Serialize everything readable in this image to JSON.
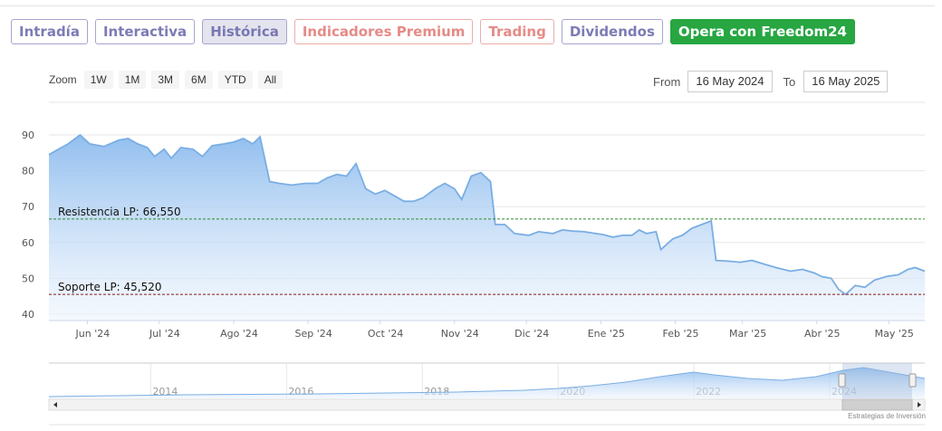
{
  "tabs": {
    "intradia": "Intradía",
    "interactiva": "Interactiva",
    "historica": "Histórica",
    "indicadores": "Indicadores Premium",
    "trading": "Trading",
    "dividendos": "Dividendos",
    "opera": "Opera con Freedom24"
  },
  "zoom": {
    "label": "Zoom",
    "buttons": [
      "1W",
      "1M",
      "3M",
      "6M",
      "YTD",
      "All"
    ]
  },
  "range": {
    "from_label": "From",
    "from_value": "16 May 2024",
    "to_label": "To",
    "to_value": "16 May 2025"
  },
  "credit": "Estrategias de Inversión",
  "colors": {
    "line": "#7aaee3",
    "fill_top": "#8cbbee",
    "resistance": "#2e8b2e",
    "support": "#8b1a1a"
  },
  "chart_data": {
    "type": "area",
    "title": "",
    "ylim": [
      40,
      90
    ],
    "y_ticks": [
      40,
      50,
      60,
      70,
      80,
      90
    ],
    "x_tick_labels": [
      "Jun '24",
      "Jul '24",
      "Ago '24",
      "Sep '24",
      "Oct '24",
      "Nov '24",
      "Dic '24",
      "Ene '25",
      "Feb '25",
      "Mar '25",
      "Abr '25",
      "May '25"
    ],
    "x_start": "2024-05-16",
    "x_end": "2025-05-16",
    "grid": true,
    "series": [
      {
        "values": [
          [
            "2024-05-16",
            84.5
          ],
          [
            "2024-05-20",
            86
          ],
          [
            "2024-05-24",
            87.5
          ],
          [
            "2024-05-29",
            90
          ],
          [
            "2024-06-02",
            87.5
          ],
          [
            "2024-06-08",
            86.8
          ],
          [
            "2024-06-14",
            88.5
          ],
          [
            "2024-06-18",
            89
          ],
          [
            "2024-06-22",
            87.5
          ],
          [
            "2024-06-26",
            86.5
          ],
          [
            "2024-06-29",
            84
          ],
          [
            "2024-07-03",
            86
          ],
          [
            "2024-07-06",
            83.5
          ],
          [
            "2024-07-10",
            86.5
          ],
          [
            "2024-07-15",
            86
          ],
          [
            "2024-07-19",
            84
          ],
          [
            "2024-07-23",
            87
          ],
          [
            "2024-07-28",
            87.5
          ],
          [
            "2024-08-01",
            88
          ],
          [
            "2024-08-05",
            89
          ],
          [
            "2024-08-09",
            87.5
          ],
          [
            "2024-08-12",
            89.5
          ],
          [
            "2024-08-16",
            77
          ],
          [
            "2024-08-20",
            76.5
          ],
          [
            "2024-08-25",
            76
          ],
          [
            "2024-08-31",
            76.5
          ],
          [
            "2024-09-05",
            76.5
          ],
          [
            "2024-09-09",
            78
          ],
          [
            "2024-09-13",
            79
          ],
          [
            "2024-09-17",
            78.5
          ],
          [
            "2024-09-21",
            82
          ],
          [
            "2024-09-25",
            75
          ],
          [
            "2024-09-29",
            73.5
          ],
          [
            "2024-10-03",
            74.5
          ],
          [
            "2024-10-07",
            73
          ],
          [
            "2024-10-11",
            71.5
          ],
          [
            "2024-10-15",
            71.5
          ],
          [
            "2024-10-19",
            72.5
          ],
          [
            "2024-10-24",
            75
          ],
          [
            "2024-10-28",
            76.5
          ],
          [
            "2024-11-01",
            75
          ],
          [
            "2024-11-04",
            72
          ],
          [
            "2024-11-08",
            78.5
          ],
          [
            "2024-11-12",
            79.5
          ],
          [
            "2024-11-16",
            77
          ],
          [
            "2024-11-18",
            65
          ],
          [
            "2024-11-22",
            65
          ],
          [
            "2024-11-26",
            62.5
          ],
          [
            "2024-12-02",
            62
          ],
          [
            "2024-12-06",
            63
          ],
          [
            "2024-12-12",
            62.5
          ],
          [
            "2024-12-16",
            63.5
          ],
          [
            "2024-12-20",
            63.2
          ],
          [
            "2024-12-25",
            63
          ],
          [
            "2025-01-02",
            62.2
          ],
          [
            "2025-01-06",
            61.5
          ],
          [
            "2025-01-10",
            62
          ],
          [
            "2025-01-14",
            62
          ],
          [
            "2025-01-17",
            63.5
          ],
          [
            "2025-01-20",
            62.5
          ],
          [
            "2025-01-24",
            63
          ],
          [
            "2025-01-26",
            58
          ],
          [
            "2025-01-31",
            61
          ],
          [
            "2025-02-04",
            62
          ],
          [
            "2025-02-08",
            64
          ],
          [
            "2025-02-12",
            65
          ],
          [
            "2025-02-16",
            66
          ],
          [
            "2025-02-18",
            55
          ],
          [
            "2025-02-23",
            54.8
          ],
          [
            "2025-02-28",
            54.5
          ],
          [
            "2025-03-05",
            55
          ],
          [
            "2025-03-10",
            54
          ],
          [
            "2025-03-15",
            53
          ],
          [
            "2025-03-21",
            52
          ],
          [
            "2025-03-26",
            52.5
          ],
          [
            "2025-03-31",
            51.5
          ],
          [
            "2025-04-03",
            50.5
          ],
          [
            "2025-04-07",
            50
          ],
          [
            "2025-04-10",
            47
          ],
          [
            "2025-04-13",
            45.5
          ],
          [
            "2025-04-17",
            48
          ],
          [
            "2025-04-21",
            47.5
          ],
          [
            "2025-04-25",
            49.5
          ],
          [
            "2025-04-30",
            50.5
          ],
          [
            "2025-05-05",
            51
          ],
          [
            "2025-05-09",
            52.5
          ],
          [
            "2025-05-12",
            53
          ],
          [
            "2025-05-16",
            52
          ]
        ]
      }
    ],
    "annotations": [
      {
        "label": "Resistencia LP: 66,550",
        "value": 66.55,
        "style": "dashed",
        "color": "#2e8b2e"
      },
      {
        "label": "Soporte LP: 45,520",
        "value": 45.52,
        "style": "dashed",
        "color": "#8b1a1a"
      }
    ],
    "navigator": {
      "tick_labels": [
        "2014",
        "2016",
        "2018",
        "2020",
        "2022",
        "2024"
      ]
    }
  }
}
